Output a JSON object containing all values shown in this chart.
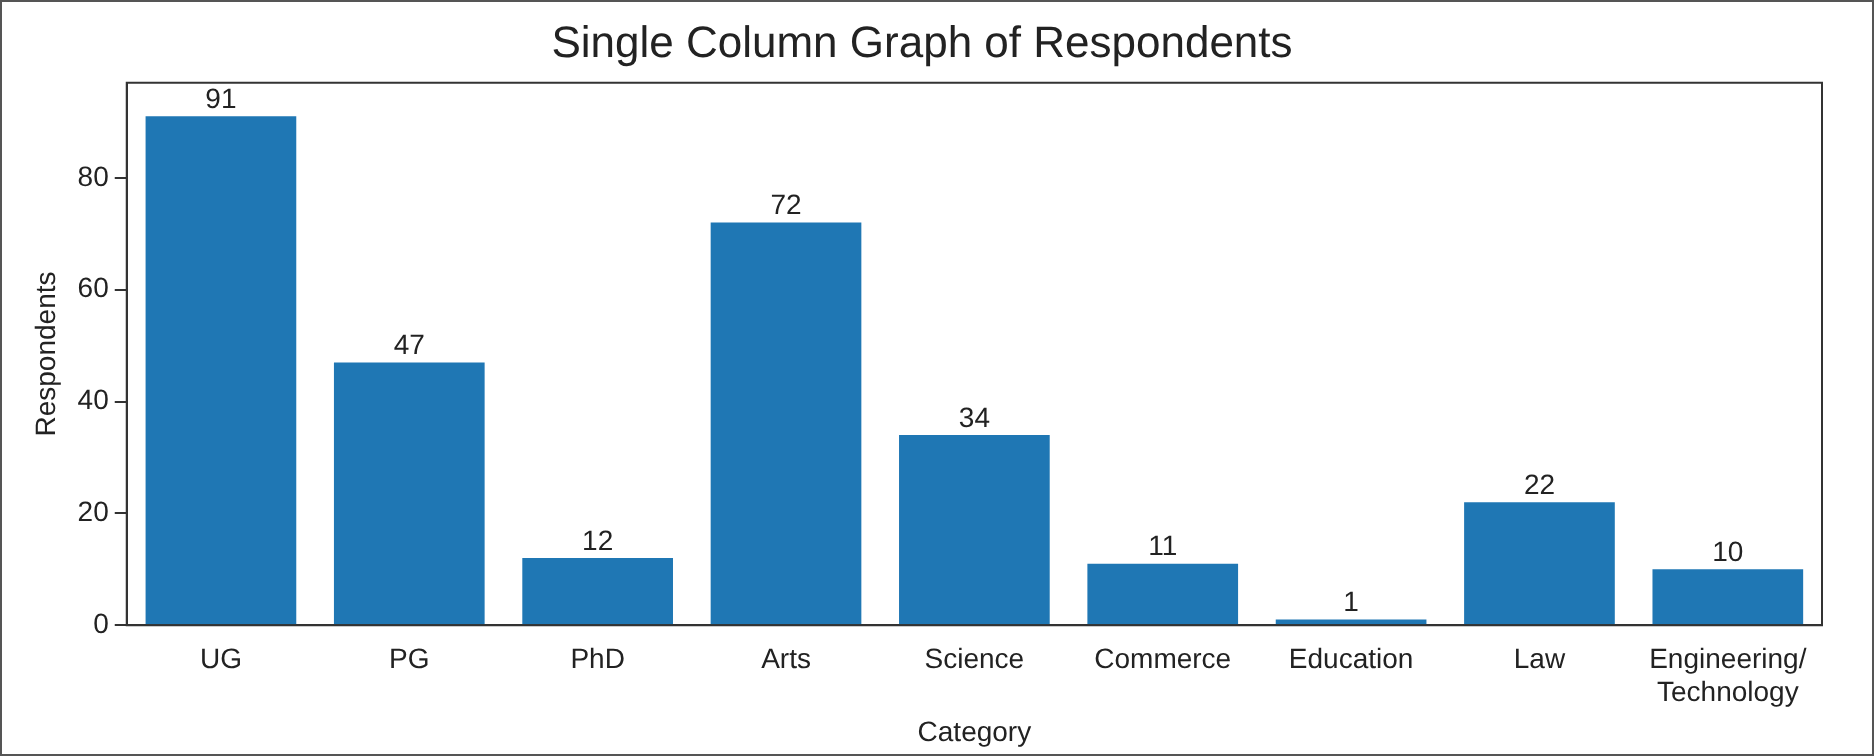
{
  "chart_data": {
    "type": "bar",
    "title": "Single Column Graph of Respondents",
    "xlabel": "Category",
    "ylabel": "Respondents",
    "categories": [
      "UG",
      "PG",
      "PhD",
      "Arts",
      "Science",
      "Commerce",
      "Education",
      "Law",
      "Engineering/Technology"
    ],
    "values": [
      91,
      47,
      12,
      72,
      34,
      11,
      1,
      22,
      10
    ],
    "color": "#1f77b4",
    "ylim": [
      0,
      97
    ],
    "yticks": [
      0,
      20,
      40,
      60,
      80
    ],
    "grid": false,
    "legend": false,
    "data_labels": true
  }
}
